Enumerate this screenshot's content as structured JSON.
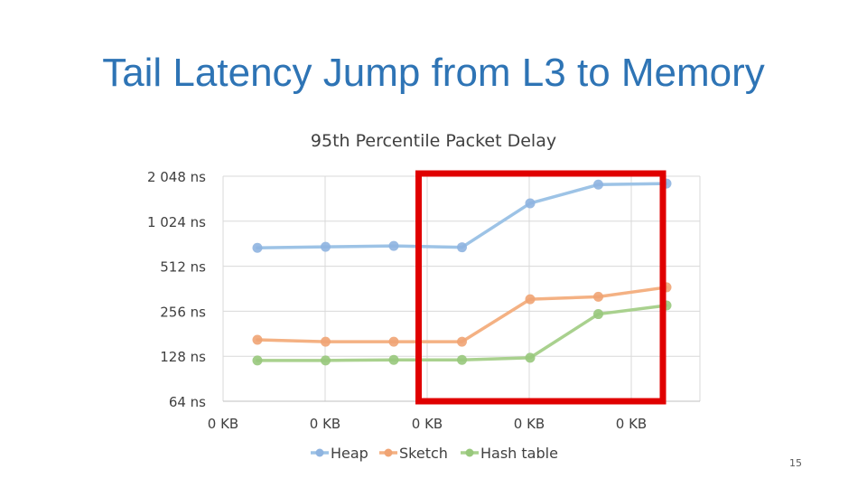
{
  "slide": {
    "title": "Tail Latency Jump from L3 to Memory",
    "page_number": "15"
  },
  "chart_data": {
    "type": "line",
    "title": "95th Percentile Packet Delay",
    "y_scale": "log2",
    "ylim": [
      64,
      2048
    ],
    "y_tick_values": [
      64,
      128,
      256,
      512,
      1024,
      2048
    ],
    "y_tick_labels": [
      "64 ns",
      "128 ns",
      "256 ns",
      "512 ns",
      "1 024 ns",
      "2 048 ns"
    ],
    "x_tick_labels": [
      "0 KB",
      "0 KB",
      "0 KB",
      "0 KB",
      "0 KB"
    ],
    "num_points": 7,
    "series": [
      {
        "name": "Heap",
        "color": "#9dc3e6",
        "marker": "#8fb4e0",
        "values": [
          680,
          690,
          700,
          685,
          1350,
          1800,
          1830
        ]
      },
      {
        "name": "Sketch",
        "color": "#f4b183",
        "marker": "#f0a474",
        "values": [
          165,
          160,
          160,
          160,
          308,
          320,
          370
        ]
      },
      {
        "name": "Hash table",
        "color": "#a9d18e",
        "marker": "#98c87c",
        "values": [
          120,
          120,
          121,
          121,
          125,
          245,
          280
        ]
      }
    ],
    "legend_position": "bottom",
    "gridlines": true,
    "highlight": {
      "from_index": 3,
      "to_index": 6,
      "color": "#e00000"
    }
  }
}
